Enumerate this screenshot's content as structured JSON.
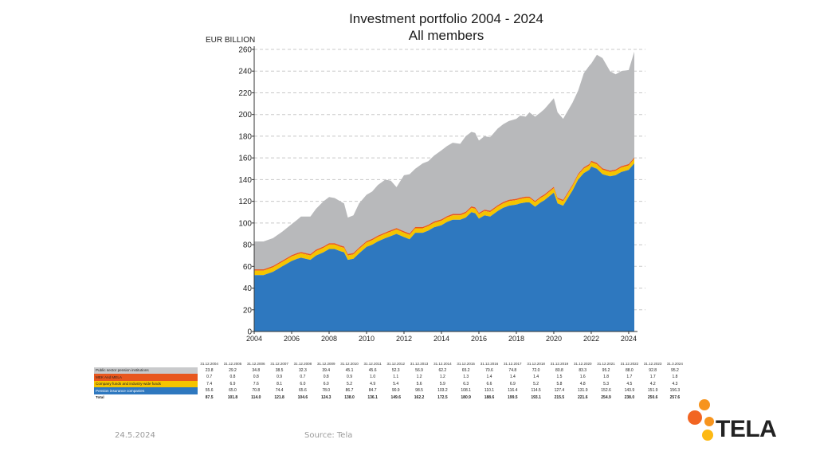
{
  "chart_data": {
    "type": "area",
    "title": "Investment portfolio 2004 - 2024",
    "subtitle": "All members",
    "ylabel": "EUR BILLION",
    "ylim": [
      0,
      260
    ],
    "yticks": [
      0,
      20,
      40,
      60,
      80,
      100,
      120,
      140,
      160,
      180,
      200,
      220,
      240,
      260
    ],
    "xticks": [
      "2004",
      "2006",
      "2008",
      "2010",
      "2012",
      "2014",
      "2016",
      "2018",
      "2020",
      "2022",
      "2024"
    ],
    "grid": true,
    "colors": {
      "public": "#b8b9bb",
      "mela": "#e8571e",
      "company": "#f5c400",
      "pension": "#2e78bf"
    },
    "table_header": [
      "31.12.2004",
      "31.12.2005",
      "31.12.2006",
      "31.12.2007",
      "31.12.2008",
      "31.12.2009",
      "31.12.2010",
      "31.12.2011",
      "31.12.2012",
      "31.12.2013",
      "31.12.2014",
      "31.12.2015",
      "31.12.2016",
      "31.12.2017",
      "31.12.2018",
      "31.12.2019",
      "31.12.2020",
      "31.12.2021",
      "31.12.2022",
      "31.12.2023",
      "31.3.2024"
    ],
    "series": [
      {
        "name": "Public sector pension institutions",
        "key": "public",
        "values": [
          23.8,
          29.2,
          34.8,
          38.5,
          32.3,
          39.4,
          45.1,
          45.6,
          52.3,
          56.9,
          62.2,
          65.2,
          70.6,
          74.8,
          72.0,
          80.8,
          83.3,
          95.2,
          88.0,
          92.8,
          95.2
        ]
      },
      {
        "name": "MEK And MELA",
        "key": "mela",
        "values": [
          0.7,
          0.8,
          0.8,
          0.9,
          0.7,
          0.8,
          0.9,
          1.0,
          1.1,
          1.2,
          1.2,
          1.3,
          1.4,
          1.4,
          1.4,
          1.5,
          1.6,
          1.8,
          1.7,
          1.7,
          1.8
        ]
      },
      {
        "name": "Company funds and industry-wide funds",
        "key": "company",
        "values": [
          7.4,
          6.9,
          7.6,
          8.1,
          6.0,
          6.0,
          5.2,
          4.9,
          5.4,
          5.6,
          5.9,
          6.3,
          6.6,
          6.9,
          5.2,
          5.8,
          4.8,
          5.3,
          4.5,
          4.2,
          4.3
        ]
      },
      {
        "name": "Pension insurance companies",
        "key": "pension",
        "values": [
          55.6,
          65.0,
          70.8,
          74.4,
          65.6,
          78.0,
          86.7,
          84.7,
          90.9,
          98.5,
          103.2,
          108.1,
          110.1,
          116.4,
          114.5,
          127.4,
          131.9,
          152.6,
          143.9,
          151.9,
          156.3
        ]
      }
    ],
    "totals_label": "Total",
    "totals": [
      87.5,
      101.8,
      114.0,
      121.8,
      104.6,
      124.3,
      138.0,
      136.1,
      149.6,
      162.2,
      172.5,
      180.9,
      188.6,
      199.5,
      193.1,
      215.5,
      221.6,
      254.9,
      238.0,
      250.6,
      257.6
    ],
    "area_profile": {
      "x": [
        2004,
        2004.5,
        2005,
        2005.5,
        2006,
        2006.3,
        2006.5,
        2007,
        2007.3,
        2007.7,
        2008,
        2008.3,
        2008.6,
        2008.8,
        2009,
        2009.3,
        2009.6,
        2010,
        2010.3,
        2010.6,
        2011,
        2011.3,
        2011.6,
        2012,
        2012.3,
        2012.6,
        2013,
        2013.3,
        2013.6,
        2014,
        2014.3,
        2014.6,
        2015,
        2015.3,
        2015.6,
        2015.8,
        2016,
        2016.3,
        2016.6,
        2017,
        2017.3,
        2017.6,
        2018,
        2018.2,
        2018.5,
        2018.7,
        2019,
        2019.3,
        2019.5,
        2020,
        2020.2,
        2020.5,
        2021,
        2021.3,
        2021.6,
        2021.9,
        2022,
        2022.3,
        2022.6,
        2023,
        2023.3,
        2023.6,
        2024,
        2024.3
      ],
      "total": [
        83,
        83,
        86,
        92,
        99,
        103,
        106,
        106,
        113,
        120,
        124,
        123,
        120,
        118,
        105,
        107,
        118,
        126,
        129,
        135,
        140,
        139,
        133,
        144,
        145,
        150,
        155,
        157,
        162,
        167,
        171,
        174,
        173,
        180,
        184,
        183,
        176,
        180,
        179,
        187,
        191,
        194,
        196,
        199,
        198,
        202,
        198,
        202,
        205,
        215,
        202,
        196,
        211,
        222,
        238,
        245,
        247,
        255,
        252,
        240,
        237,
        240,
        241,
        258
      ],
      "pension": [
        52,
        52,
        55,
        60,
        65,
        67,
        68,
        66,
        70,
        73,
        76,
        76,
        74,
        73,
        66,
        67,
        72,
        78,
        80,
        83,
        86,
        88,
        90,
        87,
        85,
        91,
        91,
        93,
        96,
        98,
        101,
        103,
        103,
        105,
        110,
        109,
        104,
        107,
        106,
        111,
        114,
        116,
        117,
        118,
        119,
        119,
        115,
        119,
        121,
        128,
        118,
        116,
        130,
        140,
        146,
        149,
        152,
        150,
        145,
        143,
        144,
        147,
        149,
        155
      ]
    }
  },
  "footer": {
    "date": "24.5.2024",
    "source": "Source: Tela",
    "logo_text": "TELA"
  }
}
